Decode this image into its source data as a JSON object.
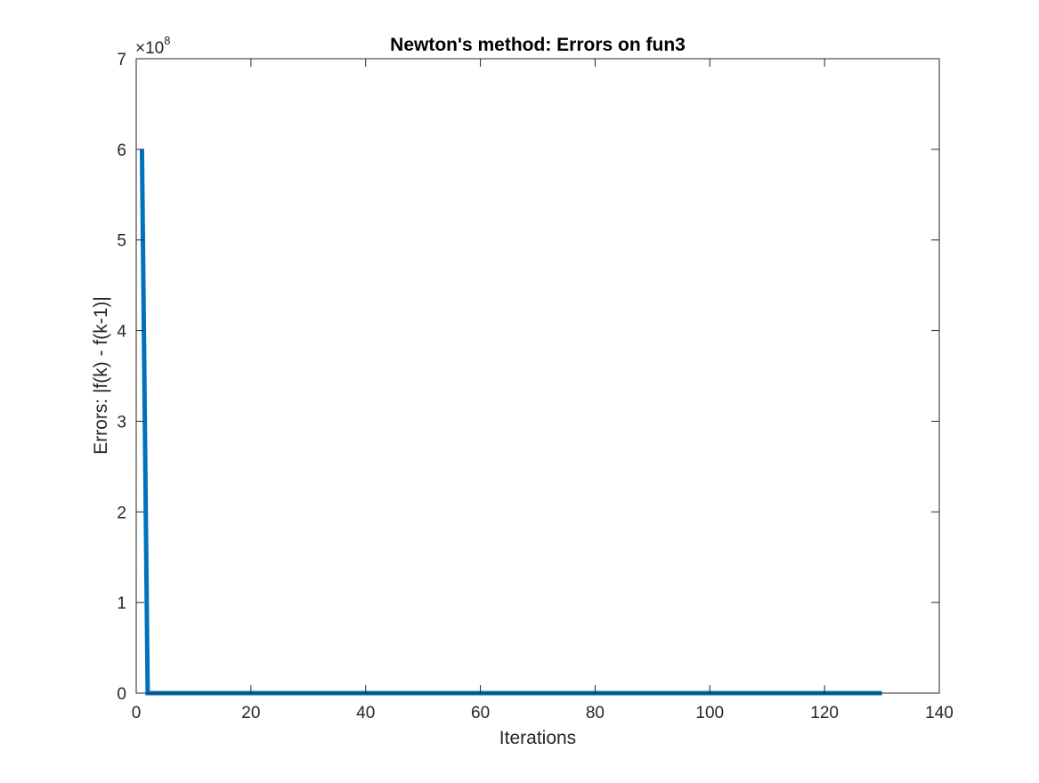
{
  "chart_data": {
    "type": "line",
    "title": "Newton's method: Errors on fun3",
    "xlabel": "Iterations",
    "ylabel": "Errors: |f(k) - f(k-1)|",
    "xlim": [
      0,
      140
    ],
    "ylim": [
      0,
      7
    ],
    "y_exponent_label": {
      "base": "×10",
      "power": "8"
    },
    "x_ticks": [
      0,
      20,
      40,
      60,
      80,
      100,
      120,
      140
    ],
    "x_tick_labels": [
      "0",
      "20",
      "40",
      "60",
      "80",
      "100",
      "120",
      "140"
    ],
    "y_ticks": [
      0,
      1,
      2,
      3,
      4,
      5,
      6,
      7
    ],
    "y_tick_labels": [
      "0",
      "1",
      "2",
      "3",
      "4",
      "5",
      "6",
      "7"
    ],
    "grid": false,
    "box": true,
    "series": [
      {
        "color": "#0072BD",
        "x": [
          1,
          2,
          130
        ],
        "y": [
          6.0,
          0,
          0
        ]
      }
    ]
  }
}
